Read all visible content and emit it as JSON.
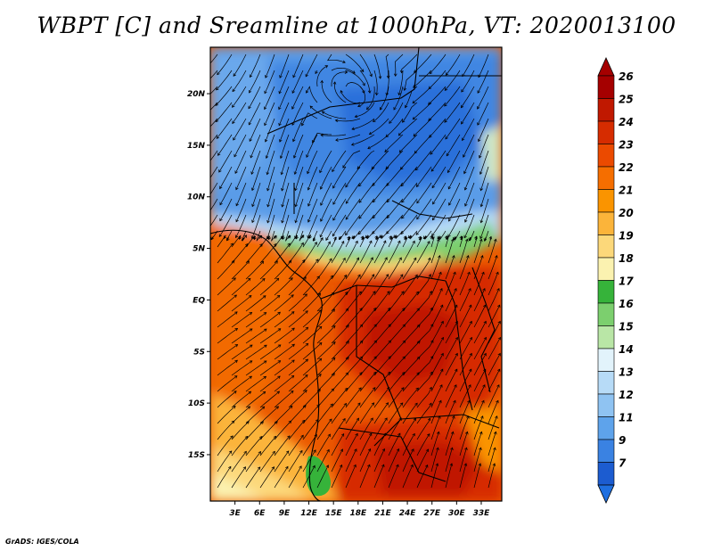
{
  "title": "WBPT [C] and Sreamline at 1000hPa, VT: 2020013100",
  "footer": "GrADS: IGES/COLA",
  "map": {
    "lat_range": [
      -19.5,
      24.5
    ],
    "lon_range": [
      0,
      35.5
    ],
    "lat_ticks": [
      {
        "value": 20,
        "label": "20N"
      },
      {
        "value": 15,
        "label": "15N"
      },
      {
        "value": 10,
        "label": "10N"
      },
      {
        "value": 5,
        "label": "5N"
      },
      {
        "value": 0,
        "label": "EQ"
      },
      {
        "value": -5,
        "label": "5S"
      },
      {
        "value": -10,
        "label": "10S"
      },
      {
        "value": -15,
        "label": "15S"
      }
    ],
    "lon_ticks": [
      {
        "value": 3,
        "label": "3E"
      },
      {
        "value": 6,
        "label": "6E"
      },
      {
        "value": 9,
        "label": "9E"
      },
      {
        "value": 12,
        "label": "12E"
      },
      {
        "value": 15,
        "label": "15E"
      },
      {
        "value": 18,
        "label": "18E"
      },
      {
        "value": 21,
        "label": "21E"
      },
      {
        "value": 24,
        "label": "24E"
      },
      {
        "value": 27,
        "label": "27E"
      },
      {
        "value": 30,
        "label": "30E"
      },
      {
        "value": 33,
        "label": "33E"
      }
    ]
  },
  "colorbar": {
    "levels": [
      {
        "label": "26",
        "color": "#a50000"
      },
      {
        "label": "25",
        "color": "#c01800"
      },
      {
        "label": "24",
        "color": "#d62c00"
      },
      {
        "label": "23",
        "color": "#eb4a00"
      },
      {
        "label": "22",
        "color": "#f56e00"
      },
      {
        "label": "21",
        "color": "#fa9400"
      },
      {
        "label": "20",
        "color": "#fbb43a"
      },
      {
        "label": "19",
        "color": "#fcd87a"
      },
      {
        "label": "18",
        "color": "#fbf2b0"
      },
      {
        "label": "17",
        "color": "#36b33a"
      },
      {
        "label": "16",
        "color": "#7ccf6e"
      },
      {
        "label": "15",
        "color": "#b9e6a6"
      },
      {
        "label": "14",
        "color": "#e2f3fb"
      },
      {
        "label": "13",
        "color": "#b7dbf7"
      },
      {
        "label": "12",
        "color": "#8fc3f2"
      },
      {
        "label": "11",
        "color": "#5ea3eb"
      },
      {
        "label": "9",
        "color": "#3a82e2"
      },
      {
        "label": "7",
        "color": "#1c5cd0"
      }
    ]
  }
}
